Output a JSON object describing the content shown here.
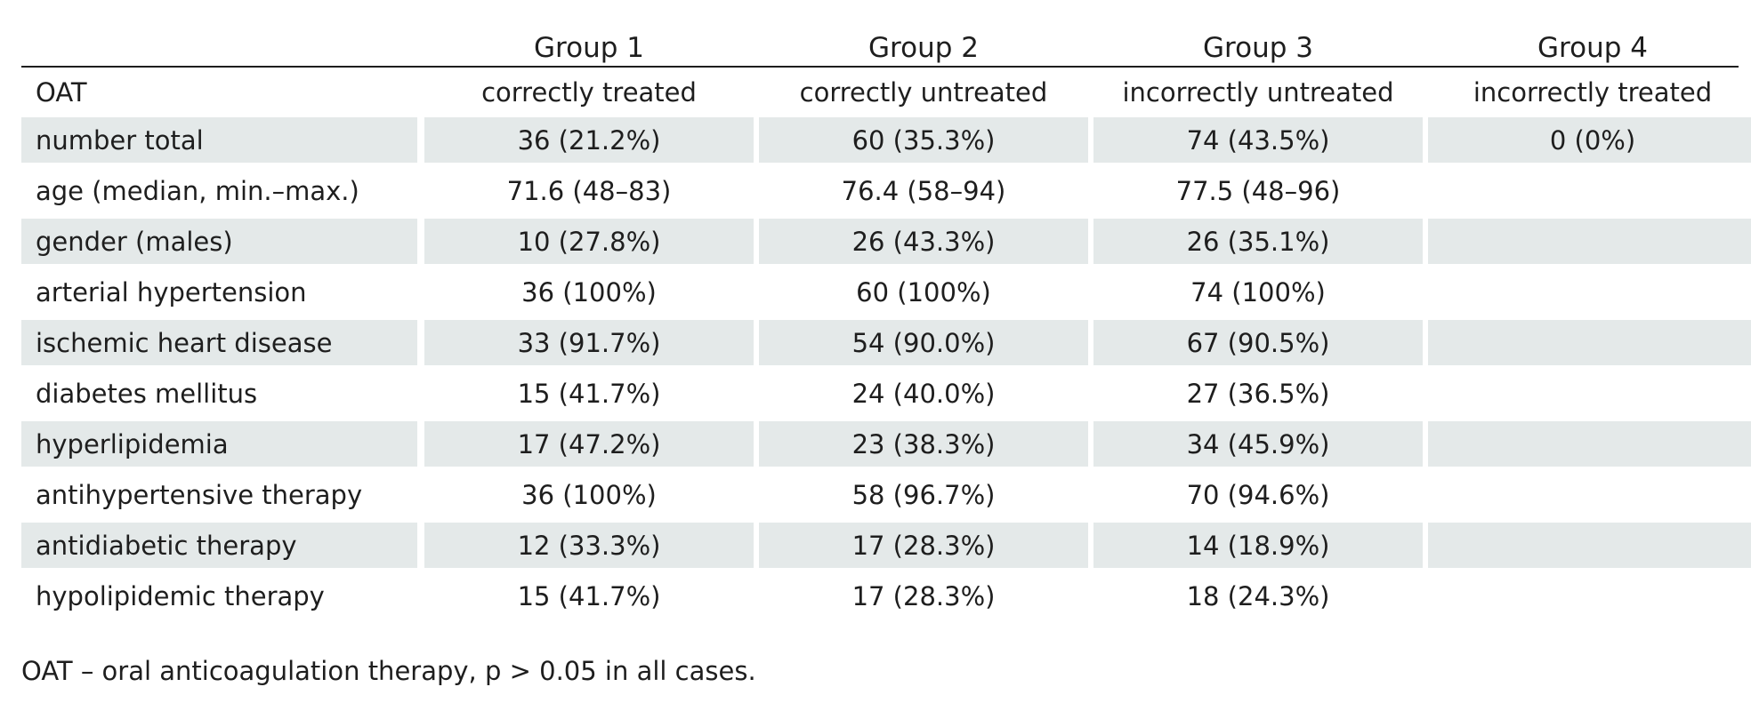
{
  "table": {
    "groups": [
      "Group 1",
      "Group 2",
      "Group 3",
      "Group 4"
    ],
    "oat_label": "OAT",
    "oat_values": [
      "correctly treated",
      "correctly untreated",
      "incorrectly untreated",
      "incorrectly treated"
    ],
    "rows": [
      {
        "label": "number total",
        "values": [
          "36 (21.2%)",
          "60 (35.3%)",
          "74 (43.5%)",
          "0 (0%)"
        ],
        "shaded": true
      },
      {
        "label": "age (median, min.–max.)",
        "values": [
          "71.6 (48–83)",
          "76.4 (58–94)",
          "77.5 (48–96)",
          ""
        ],
        "shaded": false
      },
      {
        "label": "gender (males)",
        "values": [
          "10 (27.8%)",
          "26 (43.3%)",
          "26 (35.1%)",
          ""
        ],
        "shaded": true
      },
      {
        "label": "arterial hypertension",
        "values": [
          "36 (100%)",
          "60 (100%)",
          "74 (100%)",
          ""
        ],
        "shaded": false
      },
      {
        "label": "ischemic heart disease",
        "values": [
          "33 (91.7%)",
          "54 (90.0%)",
          "67 (90.5%)",
          ""
        ],
        "shaded": true
      },
      {
        "label": "diabetes mellitus",
        "values": [
          "15 (41.7%)",
          "24 (40.0%)",
          "27 (36.5%)",
          ""
        ],
        "shaded": false
      },
      {
        "label": "hyperlipidemia",
        "values": [
          "17 (47.2%)",
          "23 (38.3%)",
          "34 (45.9%)",
          ""
        ],
        "shaded": true
      },
      {
        "label": "antihypertensive therapy",
        "values": [
          "36 (100%)",
          "58 (96.7%)",
          "70 (94.6%)",
          ""
        ],
        "shaded": false
      },
      {
        "label": "antidiabetic therapy",
        "values": [
          "12 (33.3%)",
          "17 (28.3%)",
          "14 (18.9%)",
          ""
        ],
        "shaded": true
      },
      {
        "label": "hypolipidemic therapy",
        "values": [
          "15 (41.7%)",
          "17 (28.3%)",
          "18 (24.3%)",
          ""
        ],
        "shaded": false
      }
    ]
  },
  "footnote": "OAT – oral anticoagulation therapy, p > 0.05 in all cases.",
  "colors": {
    "shade": "#e4e9e9",
    "text": "#1e1e1e",
    "rule": "#1e1e1e"
  }
}
